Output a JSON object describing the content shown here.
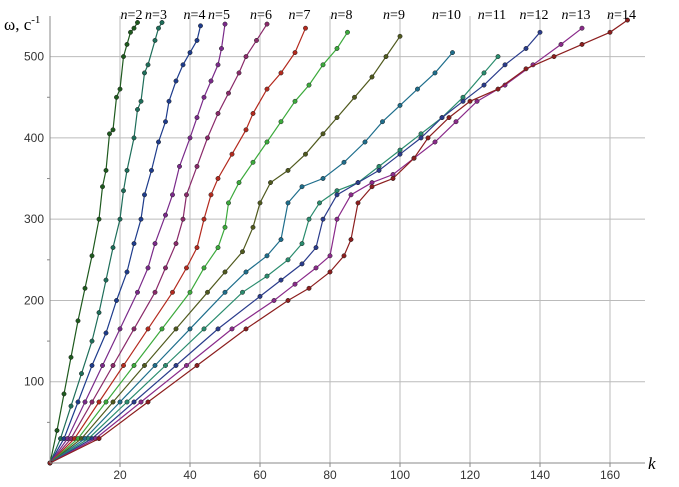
{
  "chart_data": {
    "type": "line",
    "title": "",
    "xlabel": "k",
    "ylabel": "ω, c",
    "ylabel_superscript": "-1",
    "xlim": [
      0,
      170
    ],
    "ylim": [
      0,
      550
    ],
    "x_ticks": [
      20,
      40,
      60,
      80,
      100,
      120,
      140,
      160
    ],
    "y_ticks": [
      100,
      200,
      300,
      400,
      500
    ],
    "grid": true,
    "series": [
      {
        "name": "n=2",
        "color": "#1e5a1e",
        "points": [
          [
            0,
            0
          ],
          [
            2,
            40
          ],
          [
            4,
            85
          ],
          [
            6,
            130
          ],
          [
            8,
            175
          ],
          [
            10,
            215
          ],
          [
            12,
            255
          ],
          [
            14,
            300
          ],
          [
            15,
            340
          ],
          [
            16,
            360
          ],
          [
            17,
            405
          ],
          [
            18,
            410
          ],
          [
            19,
            450
          ],
          [
            20,
            460
          ],
          [
            21,
            500
          ],
          [
            22,
            515
          ],
          [
            23,
            530
          ],
          [
            24,
            535
          ],
          [
            25,
            542
          ]
        ]
      },
      {
        "name": "n=3",
        "color": "#1e6e5a",
        "points": [
          [
            0,
            0
          ],
          [
            3,
            30
          ],
          [
            6,
            70
          ],
          [
            9,
            110
          ],
          [
            12,
            150
          ],
          [
            14,
            185
          ],
          [
            16,
            225
          ],
          [
            18,
            265
          ],
          [
            20,
            300
          ],
          [
            21,
            335
          ],
          [
            22,
            360
          ],
          [
            24,
            400
          ],
          [
            25,
            435
          ],
          [
            26,
            445
          ],
          [
            27,
            480
          ],
          [
            28,
            490
          ],
          [
            30,
            520
          ],
          [
            31,
            535
          ],
          [
            32,
            542
          ]
        ]
      },
      {
        "name": "n=4",
        "color": "#1e3c8c",
        "points": [
          [
            0,
            0
          ],
          [
            4,
            30
          ],
          [
            8,
            75
          ],
          [
            12,
            120
          ],
          [
            16,
            160
          ],
          [
            19,
            200
          ],
          [
            22,
            235
          ],
          [
            24,
            270
          ],
          [
            26,
            300
          ],
          [
            27,
            330
          ],
          [
            29,
            360
          ],
          [
            31,
            395
          ],
          [
            33,
            420
          ],
          [
            34,
            445
          ],
          [
            36,
            470
          ],
          [
            38,
            490
          ],
          [
            40,
            505
          ],
          [
            42,
            520
          ],
          [
            43,
            538
          ]
        ]
      },
      {
        "name": "n=5",
        "color": "#7a2a8a",
        "points": [
          [
            0,
            0
          ],
          [
            5,
            30
          ],
          [
            10,
            75
          ],
          [
            15,
            120
          ],
          [
            20,
            165
          ],
          [
            25,
            210
          ],
          [
            28,
            240
          ],
          [
            30,
            270
          ],
          [
            33,
            305
          ],
          [
            35,
            330
          ],
          [
            37,
            365
          ],
          [
            40,
            400
          ],
          [
            42,
            425
          ],
          [
            44,
            450
          ],
          [
            46,
            470
          ],
          [
            48,
            490
          ],
          [
            49,
            510
          ],
          [
            50,
            540
          ]
        ]
      },
      {
        "name": "n=6",
        "color": "#8a2a6a",
        "points": [
          [
            0,
            0
          ],
          [
            6,
            30
          ],
          [
            12,
            75
          ],
          [
            18,
            120
          ],
          [
            24,
            165
          ],
          [
            30,
            210
          ],
          [
            33,
            240
          ],
          [
            36,
            270
          ],
          [
            38,
            300
          ],
          [
            39,
            330
          ],
          [
            42,
            365
          ],
          [
            45,
            400
          ],
          [
            48,
            430
          ],
          [
            51,
            455
          ],
          [
            54,
            480
          ],
          [
            56,
            500
          ],
          [
            59,
            520
          ],
          [
            62,
            540
          ]
        ]
      },
      {
        "name": "n=7",
        "color": "#b42a1e",
        "points": [
          [
            0,
            0
          ],
          [
            7,
            30
          ],
          [
            14,
            75
          ],
          [
            21,
            120
          ],
          [
            28,
            165
          ],
          [
            35,
            210
          ],
          [
            39,
            240
          ],
          [
            42,
            265
          ],
          [
            44,
            300
          ],
          [
            46,
            330
          ],
          [
            48,
            350
          ],
          [
            52,
            380
          ],
          [
            56,
            410
          ],
          [
            58,
            430
          ],
          [
            62,
            460
          ],
          [
            66,
            480
          ],
          [
            70,
            505
          ],
          [
            73,
            535
          ]
        ]
      },
      {
        "name": "n=8",
        "color": "#3caa3c",
        "points": [
          [
            0,
            0
          ],
          [
            8,
            30
          ],
          [
            16,
            75
          ],
          [
            24,
            120
          ],
          [
            32,
            165
          ],
          [
            40,
            210
          ],
          [
            44,
            240
          ],
          [
            48,
            265
          ],
          [
            50,
            290
          ],
          [
            51,
            320
          ],
          [
            54,
            345
          ],
          [
            58,
            370
          ],
          [
            62,
            395
          ],
          [
            66,
            420
          ],
          [
            70,
            445
          ],
          [
            74,
            465
          ],
          [
            78,
            490
          ],
          [
            82,
            510
          ],
          [
            85,
            530
          ]
        ]
      },
      {
        "name": "n=9",
        "color": "#505a1e",
        "points": [
          [
            0,
            0
          ],
          [
            9,
            30
          ],
          [
            18,
            75
          ],
          [
            27,
            120
          ],
          [
            36,
            165
          ],
          [
            45,
            210
          ],
          [
            50,
            235
          ],
          [
            55,
            260
          ],
          [
            58,
            290
          ],
          [
            60,
            320
          ],
          [
            63,
            345
          ],
          [
            68,
            360
          ],
          [
            73,
            380
          ],
          [
            78,
            405
          ],
          [
            82,
            425
          ],
          [
            87,
            450
          ],
          [
            92,
            475
          ],
          [
            96,
            500
          ],
          [
            100,
            525
          ]
        ]
      },
      {
        "name": "n=10",
        "color": "#1e6e8c",
        "points": [
          [
            0,
            0
          ],
          [
            10,
            30
          ],
          [
            20,
            75
          ],
          [
            30,
            120
          ],
          [
            40,
            165
          ],
          [
            50,
            210
          ],
          [
            56,
            235
          ],
          [
            62,
            255
          ],
          [
            66,
            275
          ],
          [
            68,
            320
          ],
          [
            72,
            340
          ],
          [
            78,
            350
          ],
          [
            84,
            370
          ],
          [
            90,
            395
          ],
          [
            95,
            420
          ],
          [
            100,
            440
          ],
          [
            105,
            460
          ],
          [
            110,
            480
          ],
          [
            115,
            505
          ]
        ]
      },
      {
        "name": "n=11",
        "color": "#2a8c6e",
        "points": [
          [
            0,
            0
          ],
          [
            11,
            30
          ],
          [
            22,
            75
          ],
          [
            33,
            120
          ],
          [
            44,
            165
          ],
          [
            55,
            210
          ],
          [
            62,
            230
          ],
          [
            68,
            250
          ],
          [
            72,
            270
          ],
          [
            74,
            300
          ],
          [
            77,
            320
          ],
          [
            82,
            335
          ],
          [
            88,
            345
          ],
          [
            94,
            365
          ],
          [
            100,
            385
          ],
          [
            106,
            405
          ],
          [
            112,
            425
          ],
          [
            118,
            450
          ],
          [
            124,
            480
          ],
          [
            128,
            500
          ]
        ]
      },
      {
        "name": "n=12",
        "color": "#2a3c8c",
        "points": [
          [
            0,
            0
          ],
          [
            12,
            30
          ],
          [
            24,
            75
          ],
          [
            36,
            120
          ],
          [
            48,
            165
          ],
          [
            60,
            205
          ],
          [
            66,
            225
          ],
          [
            72,
            245
          ],
          [
            76,
            265
          ],
          [
            78,
            300
          ],
          [
            82,
            330
          ],
          [
            88,
            345
          ],
          [
            94,
            360
          ],
          [
            100,
            380
          ],
          [
            106,
            400
          ],
          [
            112,
            425
          ],
          [
            118,
            445
          ],
          [
            124,
            465
          ],
          [
            130,
            490
          ],
          [
            136,
            510
          ],
          [
            140,
            530
          ]
        ]
      },
      {
        "name": "n=13",
        "color": "#8a2a8a",
        "points": [
          [
            0,
            0
          ],
          [
            13,
            30
          ],
          [
            26,
            75
          ],
          [
            39,
            120
          ],
          [
            52,
            165
          ],
          [
            64,
            200
          ],
          [
            70,
            220
          ],
          [
            76,
            240
          ],
          [
            80,
            255
          ],
          [
            82,
            300
          ],
          [
            86,
            330
          ],
          [
            92,
            345
          ],
          [
            98,
            355
          ],
          [
            104,
            375
          ],
          [
            110,
            395
          ],
          [
            116,
            420
          ],
          [
            122,
            445
          ],
          [
            130,
            465
          ],
          [
            138,
            490
          ],
          [
            146,
            515
          ],
          [
            152,
            535
          ]
        ]
      },
      {
        "name": "n=14",
        "color": "#8c1e1e",
        "points": [
          [
            0,
            0
          ],
          [
            14,
            30
          ],
          [
            28,
            75
          ],
          [
            42,
            120
          ],
          [
            56,
            165
          ],
          [
            68,
            200
          ],
          [
            74,
            215
          ],
          [
            80,
            235
          ],
          [
            84,
            255
          ],
          [
            86,
            275
          ],
          [
            88,
            320
          ],
          [
            92,
            340
          ],
          [
            98,
            350
          ],
          [
            104,
            375
          ],
          [
            108,
            400
          ],
          [
            114,
            425
          ],
          [
            120,
            445
          ],
          [
            128,
            460
          ],
          [
            136,
            485
          ],
          [
            144,
            500
          ],
          [
            152,
            515
          ],
          [
            160,
            530
          ],
          [
            165,
            545
          ]
        ]
      }
    ]
  }
}
